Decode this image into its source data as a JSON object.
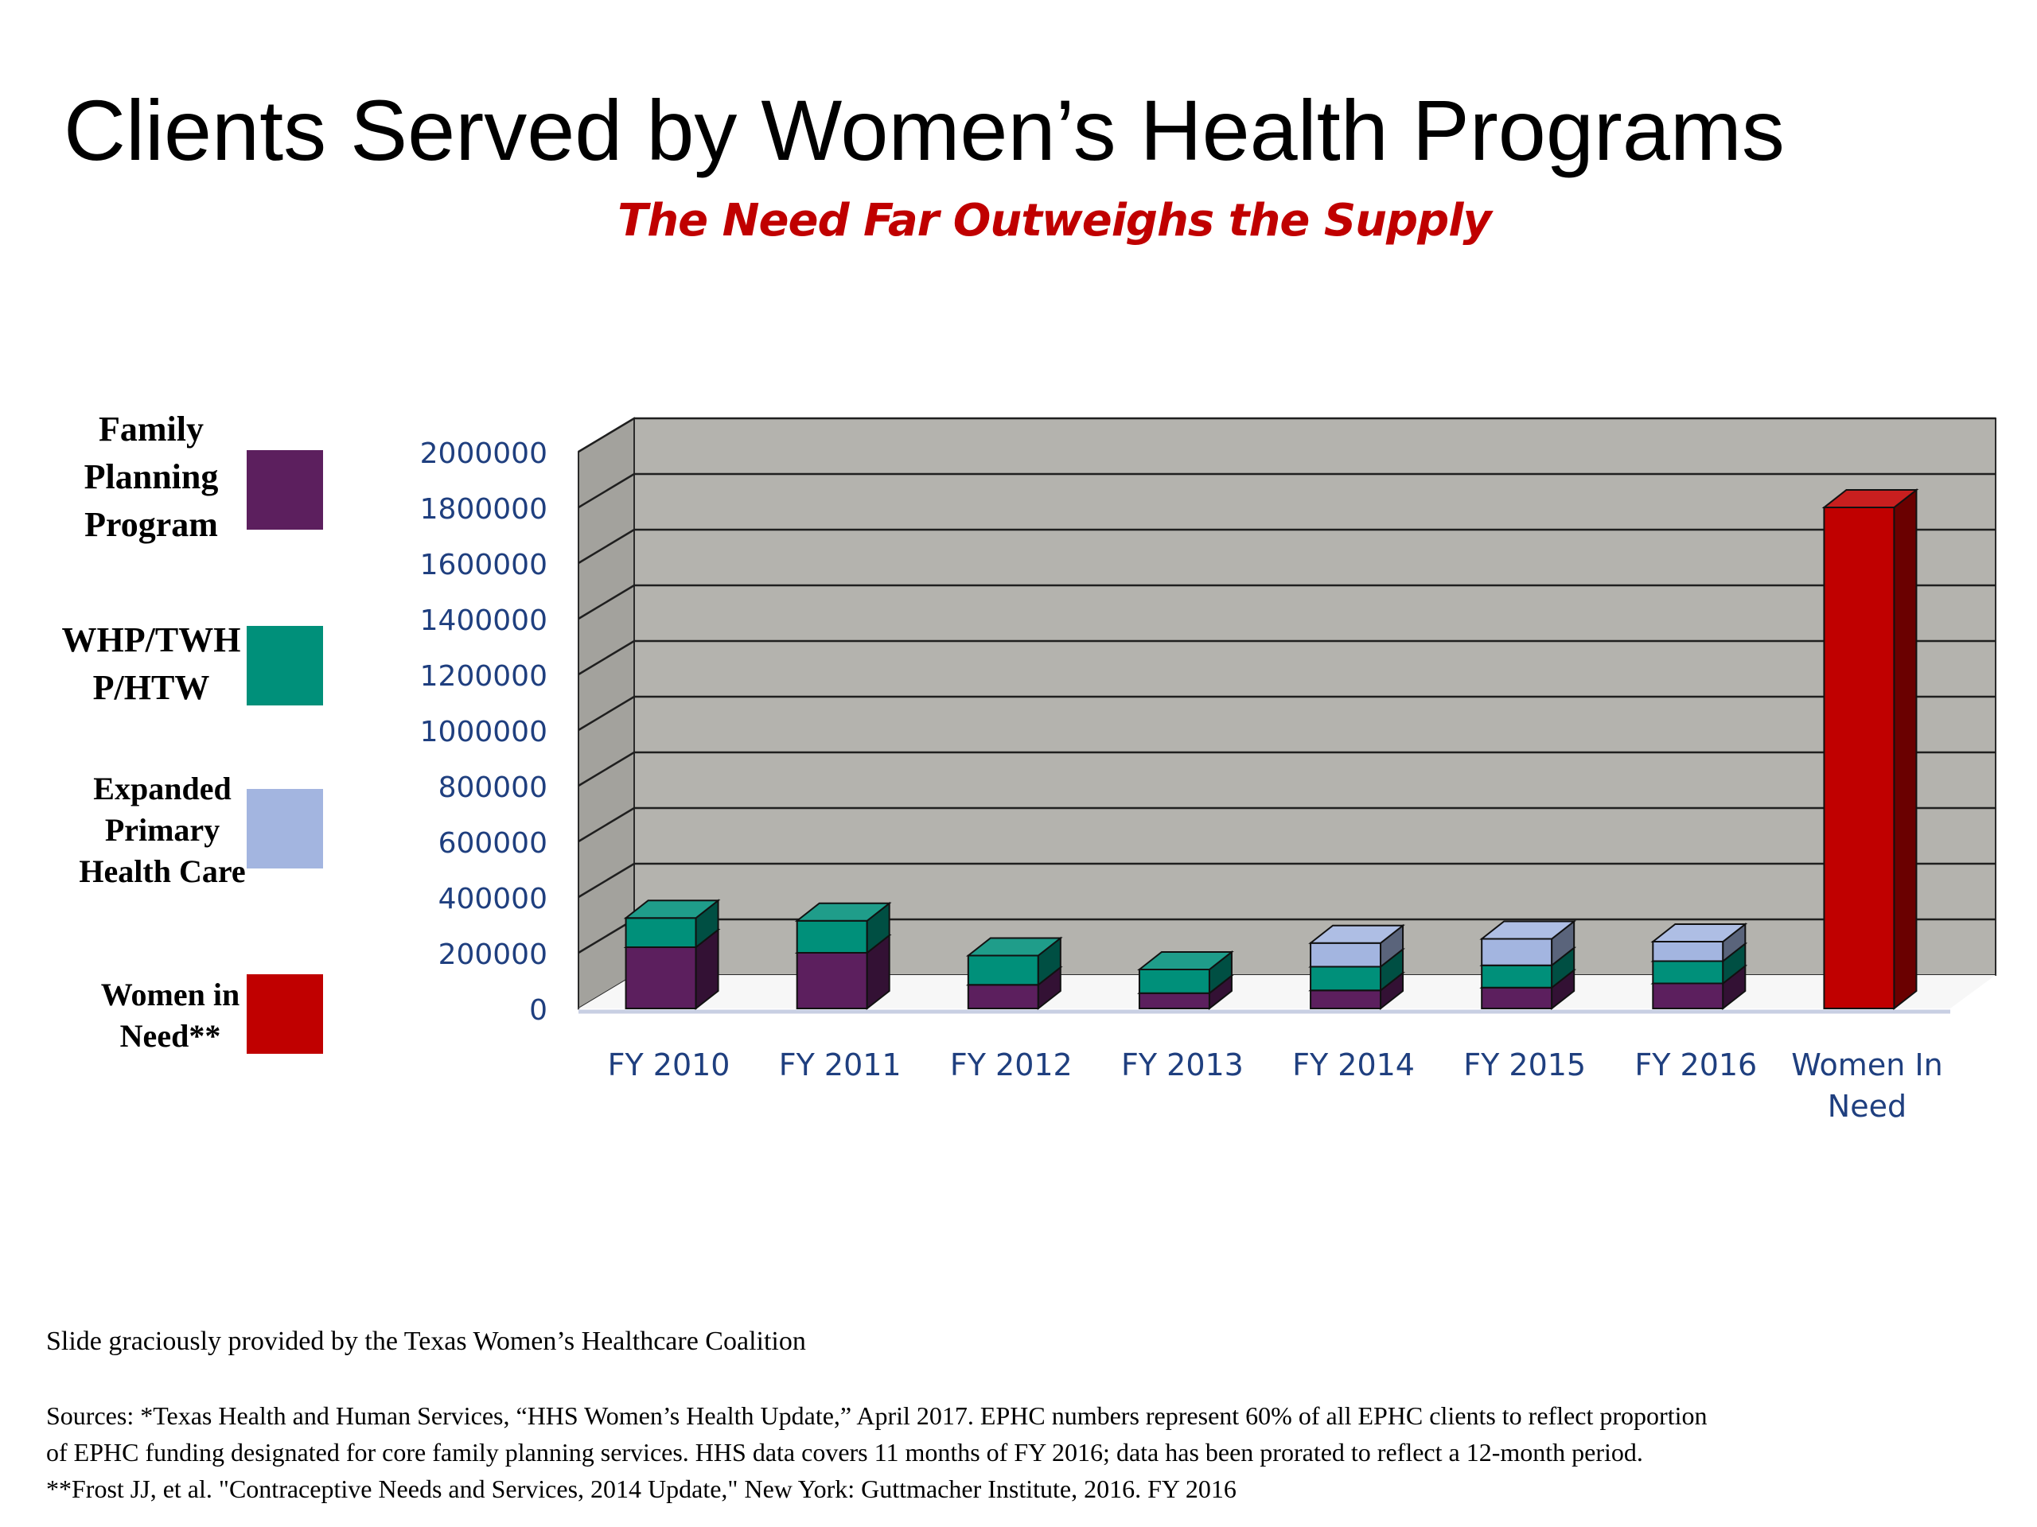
{
  "title": "Clients Served by Women’s Health Programs",
  "subtitle": "The Need Far Outweighs the Supply",
  "legend": [
    {
      "label": "Family\nPlanning\nProgram",
      "color": "#5c1f5e"
    },
    {
      "label": "WHP/TWH\nP/HTW",
      "color": "#00907a"
    },
    {
      "label": "Expanded\nPrimary\nHealth Care",
      "color": "#a3b5e0"
    },
    {
      "label": "Women in\nNeed**",
      "color": "#c00000"
    }
  ],
  "chart_data": {
    "type": "bar",
    "stacked": true,
    "three_d": true,
    "categories": [
      "FY 2010",
      "FY 2011",
      "FY 2012",
      "FY 2013",
      "FY 2014",
      "FY 2015",
      "FY 2016",
      "Women In Need"
    ],
    "series": [
      {
        "name": "Family Planning Program",
        "color": "#5c1f5e",
        "values": [
          220000,
          200000,
          85000,
          55000,
          65000,
          75000,
          90000,
          0
        ]
      },
      {
        "name": "WHP/TWH P/HTW",
        "color": "#00907a",
        "values": [
          105000,
          115000,
          105000,
          85000,
          85000,
          80000,
          80000,
          0
        ]
      },
      {
        "name": "Expanded Primary Health Care",
        "color": "#a3b5e0",
        "values": [
          0,
          0,
          0,
          0,
          85000,
          95000,
          70000,
          0
        ]
      },
      {
        "name": "Women in Need**",
        "color": "#c00000",
        "values": [
          0,
          0,
          0,
          0,
          0,
          0,
          0,
          1800000
        ]
      }
    ],
    "yticks": [
      "0",
      "200000",
      "400000",
      "600000",
      "800000",
      "1000000",
      "1200000",
      "1400000",
      "1600000",
      "1800000",
      "2000000"
    ],
    "ylim": [
      0,
      2000000
    ],
    "grid": true,
    "legend_position": "left"
  },
  "credit": "Slide graciously provided by the Texas Women’s Healthcare Coalition",
  "sources": [
    "Sources: *Texas Health and Human Services, “HHS Women’s Health Update,” April 2017. EPHC numbers represent 60% of all EPHC clients to reflect proportion",
    "of EPHC funding designated for core family planning services. HHS data covers 11 months of FY 2016; data has been prorated to reflect a 12-month period.",
    "**Frost JJ, et al. \"Contraceptive Needs and Services, 2014 Update,\"  New York: Guttmacher Institute, 2016. FY 2016"
  ]
}
